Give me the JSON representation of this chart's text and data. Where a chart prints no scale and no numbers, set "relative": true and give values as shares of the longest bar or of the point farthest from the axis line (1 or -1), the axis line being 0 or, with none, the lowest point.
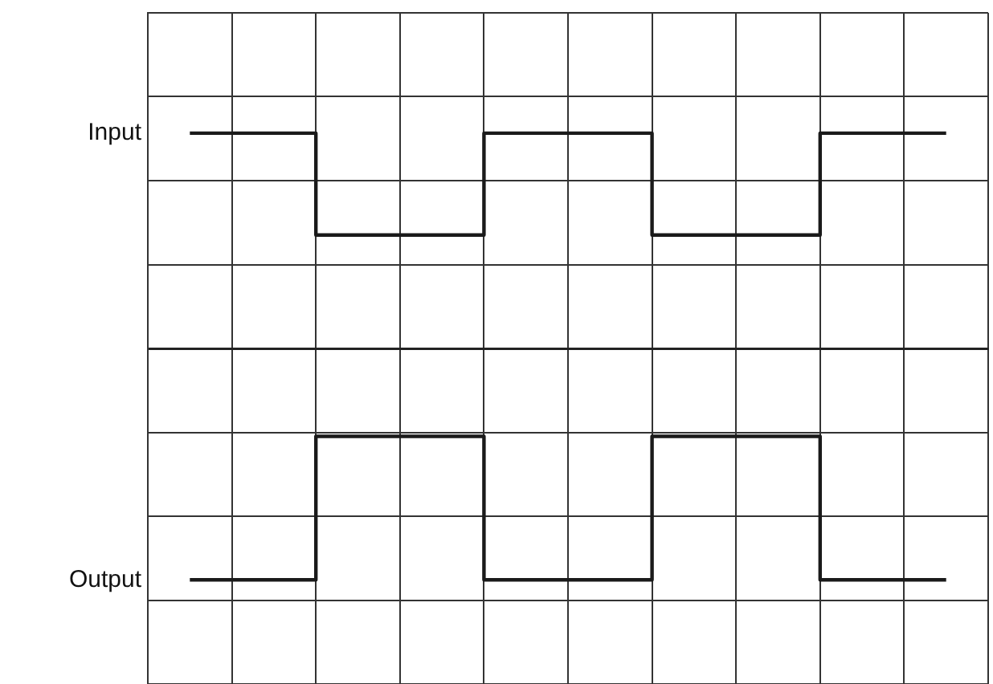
{
  "chart_data": {
    "type": "step",
    "relative": true,
    "grid": true,
    "legend": false,
    "line_style": "solid",
    "marker": "none",
    "categories": [
      null,
      null,
      null,
      null,
      null,
      null,
      null,
      null,
      null,
      null
    ],
    "series": [
      {
        "name": "Input",
        "color": "#1a1a1a",
        "values": [
          0.93,
          0.93,
          0.49,
          0.49,
          0.93,
          0.93,
          0.49,
          0.49,
          0.93,
          0.93
        ]
      },
      {
        "name": "Output",
        "color": "#1a1a1a",
        "values": [
          -1,
          -1,
          -0.38,
          -0.38,
          -1,
          -1,
          -0.38,
          -0.38,
          -1,
          -1
        ]
      }
    ]
  }
}
